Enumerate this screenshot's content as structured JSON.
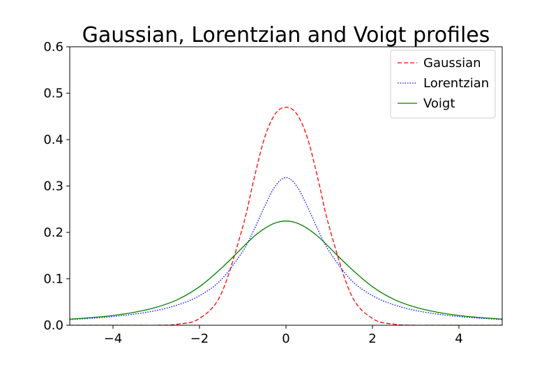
{
  "chart_data": {
    "type": "line",
    "title": "Gaussian, Lorentzian and Voigt profiles",
    "xlabel": "",
    "ylabel": "",
    "xlim": [
      -5,
      5
    ],
    "ylim": [
      0,
      0.6
    ],
    "grid": false,
    "legend_position": "top-right",
    "x_ticks": [
      {
        "value": -4,
        "label": "−4"
      },
      {
        "value": -2,
        "label": "−2"
      },
      {
        "value": 0,
        "label": "0"
      },
      {
        "value": 2,
        "label": "2"
      },
      {
        "value": 4,
        "label": "4"
      }
    ],
    "y_ticks": [
      {
        "value": 0.0,
        "label": "0.0"
      },
      {
        "value": 0.1,
        "label": "0.1"
      },
      {
        "value": 0.2,
        "label": "0.2"
      },
      {
        "value": 0.3,
        "label": "0.3"
      },
      {
        "value": 0.4,
        "label": "0.4"
      },
      {
        "value": 0.5,
        "label": "0.5"
      },
      {
        "value": 0.6,
        "label": "0.6"
      }
    ],
    "x": [
      -5.0,
      -4.5,
      -4.0,
      -3.5,
      -3.0,
      -2.5,
      -2.0,
      -1.5,
      -1.0,
      -0.75,
      -0.5,
      -0.25,
      0.0,
      0.25,
      0.5,
      0.75,
      1.0,
      1.5,
      2.0,
      2.5,
      3.0,
      3.5,
      4.0,
      4.5,
      5.0
    ],
    "series": [
      {
        "name": "Gaussian",
        "color": "#ff0000",
        "style": "dashed",
        "values": [
          0.0,
          0.0,
          0.0,
          0.0,
          0.0,
          0.0022,
          0.0146,
          0.0673,
          0.2121,
          0.3112,
          0.4023,
          0.4552,
          0.4697,
          0.4552,
          0.4023,
          0.3112,
          0.2121,
          0.0673,
          0.0146,
          0.0022,
          0.0,
          0.0,
          0.0,
          0.0,
          0.0
        ]
      },
      {
        "name": "Lorentzian",
        "color": "#0000ff",
        "style": "dotted",
        "values": [
          0.0122,
          0.015,
          0.0187,
          0.024,
          0.0318,
          0.0439,
          0.0637,
          0.0979,
          0.1592,
          0.2037,
          0.2546,
          0.2996,
          0.3183,
          0.2996,
          0.2546,
          0.2037,
          0.1592,
          0.0979,
          0.0637,
          0.0439,
          0.0318,
          0.024,
          0.0187,
          0.015,
          0.0122
        ]
      },
      {
        "name": "Voigt",
        "color": "#008000",
        "style": "solid",
        "values": [
          0.0132,
          0.0165,
          0.0211,
          0.028,
          0.0387,
          0.0556,
          0.083,
          0.1224,
          0.168,
          0.1905,
          0.2082,
          0.2203,
          0.2245,
          0.2203,
          0.2082,
          0.1905,
          0.168,
          0.1224,
          0.083,
          0.0556,
          0.0387,
          0.028,
          0.0211,
          0.0165,
          0.0132
        ]
      }
    ]
  }
}
